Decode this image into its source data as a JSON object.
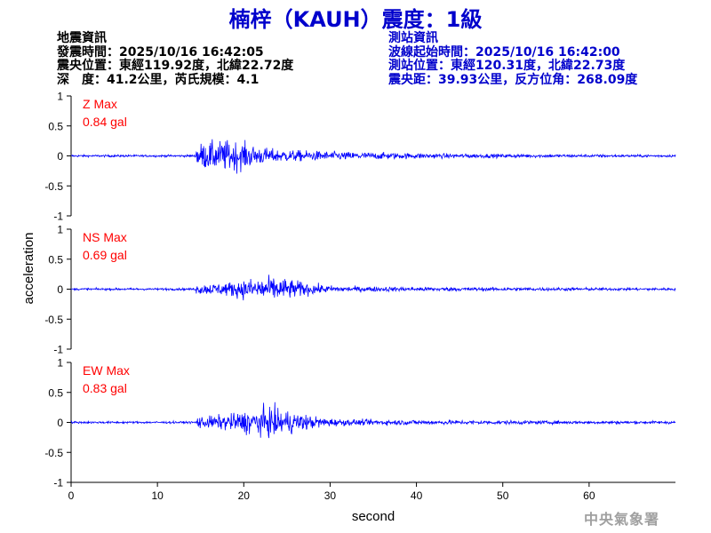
{
  "header": {
    "title": "楠梓（KAUH）震度：1級"
  },
  "earthquake_info": {
    "heading": "地震資訊",
    "origin_time": "發震時間：2025/10/16 16:42:05",
    "epicenter": "震央位置：東經119.92度，北緯22.72度",
    "depth_magnitude": "深　度：41.2公里，芮氏規模：4.1"
  },
  "station_info": {
    "heading": "測站資訊",
    "waveform_start": "波線起始時間：2025/10/16 16:42:00",
    "station_location": "測站位置：東經120.31度，北緯22.73度",
    "distance_azimuth": "震央距：39.93公里，反方位角：268.09度"
  },
  "watermark": "中央氣象署",
  "colors": {
    "trace": "#0000ff",
    "label": "#ff0000",
    "title": "#0000cc"
  },
  "chart_data": {
    "type": "line",
    "xlabel": "second",
    "ylabel": "acceleration",
    "xlim": [
      0,
      70
    ],
    "ylim": [
      -1,
      1
    ],
    "xticks": [
      "0",
      "10",
      "20",
      "30",
      "40",
      "50",
      "60"
    ],
    "yticks": [
      "1",
      "0.5",
      "0",
      "-0.5",
      "-1"
    ],
    "series": [
      {
        "name": "Z Max",
        "max_label": "0.84 gal",
        "peak": 0.84,
        "onset": 14.5
      },
      {
        "name": "NS Max",
        "max_label": "0.69 gal",
        "peak": 0.69,
        "onset": 14.5
      },
      {
        "name": "EW Max",
        "max_label": "0.83 gal",
        "peak": 0.83,
        "onset": 14.5
      }
    ]
  }
}
